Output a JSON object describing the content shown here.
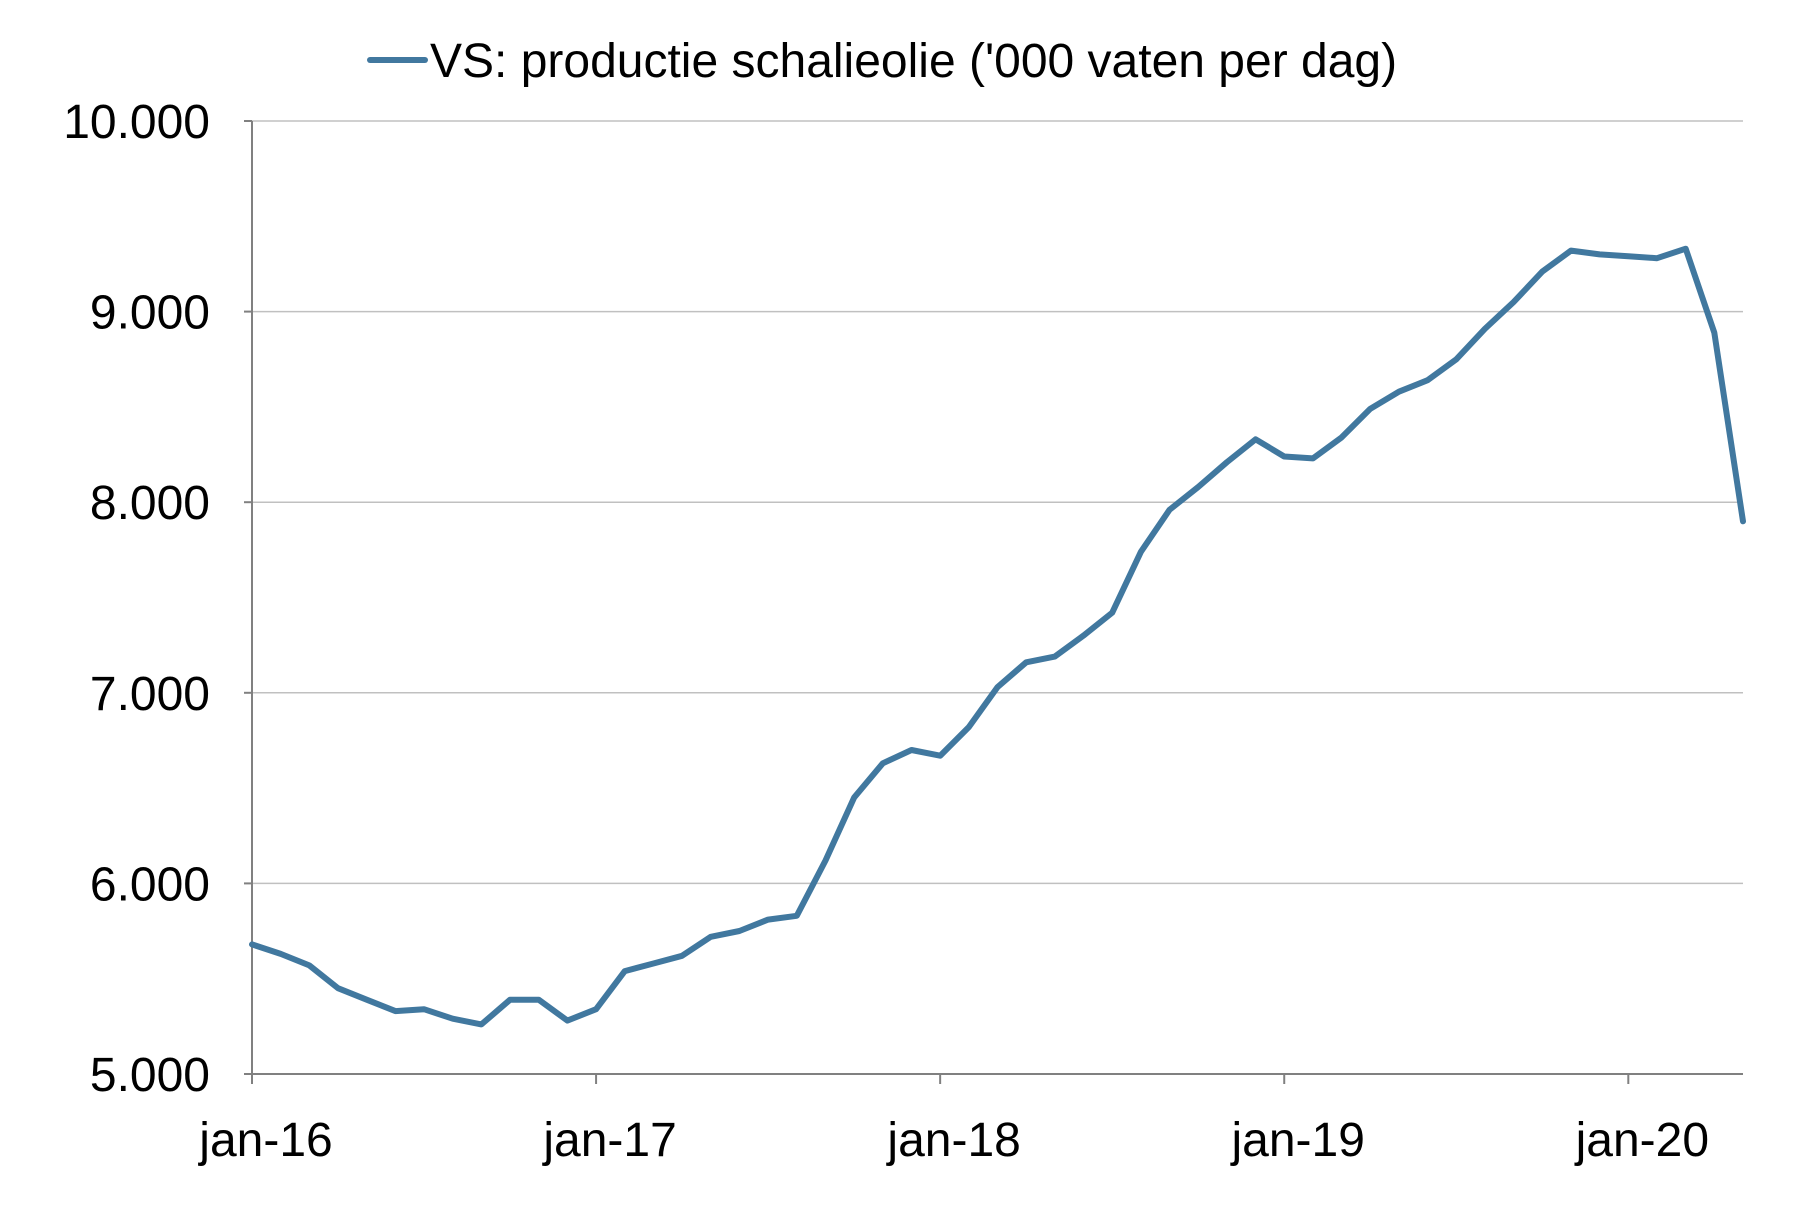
{
  "chart_data": {
    "type": "line",
    "legend_position": "top",
    "grid": "horizontal",
    "ylim": [
      5000,
      10000
    ],
    "yticks": [
      5000,
      6000,
      7000,
      8000,
      9000,
      10000
    ],
    "ytick_labels": [
      "5.000",
      "6.000",
      "7.000",
      "8.000",
      "9.000",
      "10.000"
    ],
    "xlim": [
      "2016-01",
      "2020-05"
    ],
    "xticks": [
      "2016-01",
      "2017-01",
      "2018-01",
      "2019-01",
      "2020-01"
    ],
    "xtick_labels": [
      "jan-16",
      "jan-17",
      "jan-18",
      "jan-19",
      "jan-20"
    ],
    "series": [
      {
        "name": "VS: productie schalieolie ('000 vaten per dag)",
        "color": "#41789f",
        "x": [
          "2016-01",
          "2016-02",
          "2016-03",
          "2016-04",
          "2016-05",
          "2016-06",
          "2016-07",
          "2016-08",
          "2016-09",
          "2016-10",
          "2016-11",
          "2016-12",
          "2017-01",
          "2017-02",
          "2017-03",
          "2017-04",
          "2017-05",
          "2017-06",
          "2017-07",
          "2017-08",
          "2017-09",
          "2017-10",
          "2017-11",
          "2017-12",
          "2018-01",
          "2018-02",
          "2018-03",
          "2018-04",
          "2018-05",
          "2018-06",
          "2018-07",
          "2018-08",
          "2018-09",
          "2018-10",
          "2018-11",
          "2018-12",
          "2019-01",
          "2019-02",
          "2019-03",
          "2019-04",
          "2019-05",
          "2019-06",
          "2019-07",
          "2019-08",
          "2019-09",
          "2019-10",
          "2019-11",
          "2019-12",
          "2020-01",
          "2020-02",
          "2020-03",
          "2020-04",
          "2020-05"
        ],
        "values": [
          5680,
          5630,
          5570,
          5450,
          5390,
          5330,
          5340,
          5290,
          5260,
          5390,
          5390,
          5280,
          5340,
          5540,
          5580,
          5620,
          5720,
          5750,
          5810,
          5830,
          6120,
          6450,
          6630,
          6700,
          6670,
          6820,
          7030,
          7160,
          7190,
          7300,
          7420,
          7740,
          7960,
          8080,
          8210,
          8330,
          8240,
          8230,
          8340,
          8490,
          8580,
          8640,
          8750,
          8910,
          9050,
          9210,
          9320,
          9300,
          9290,
          9280,
          9330,
          8890,
          7900
        ]
      }
    ]
  }
}
